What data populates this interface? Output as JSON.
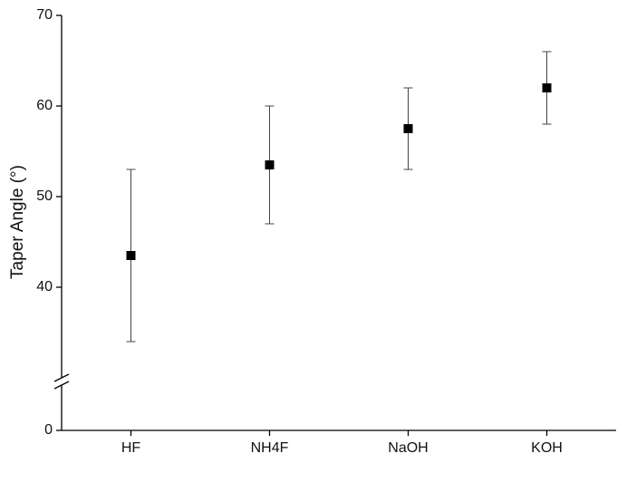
{
  "chart_data": {
    "type": "errorbar",
    "y_label": "Taper Angle (°)",
    "categories": [
      "HF",
      "NH4F",
      "NaOH",
      "KOH"
    ],
    "values": [
      43.5,
      53.5,
      57.5,
      62
    ],
    "errors": [
      9.5,
      6.5,
      4.5,
      4
    ],
    "color": "#000000",
    "ylim": [
      0,
      70
    ],
    "yticks": [
      0,
      40,
      50,
      60,
      70
    ],
    "y_break": [
      5,
      30
    ]
  }
}
